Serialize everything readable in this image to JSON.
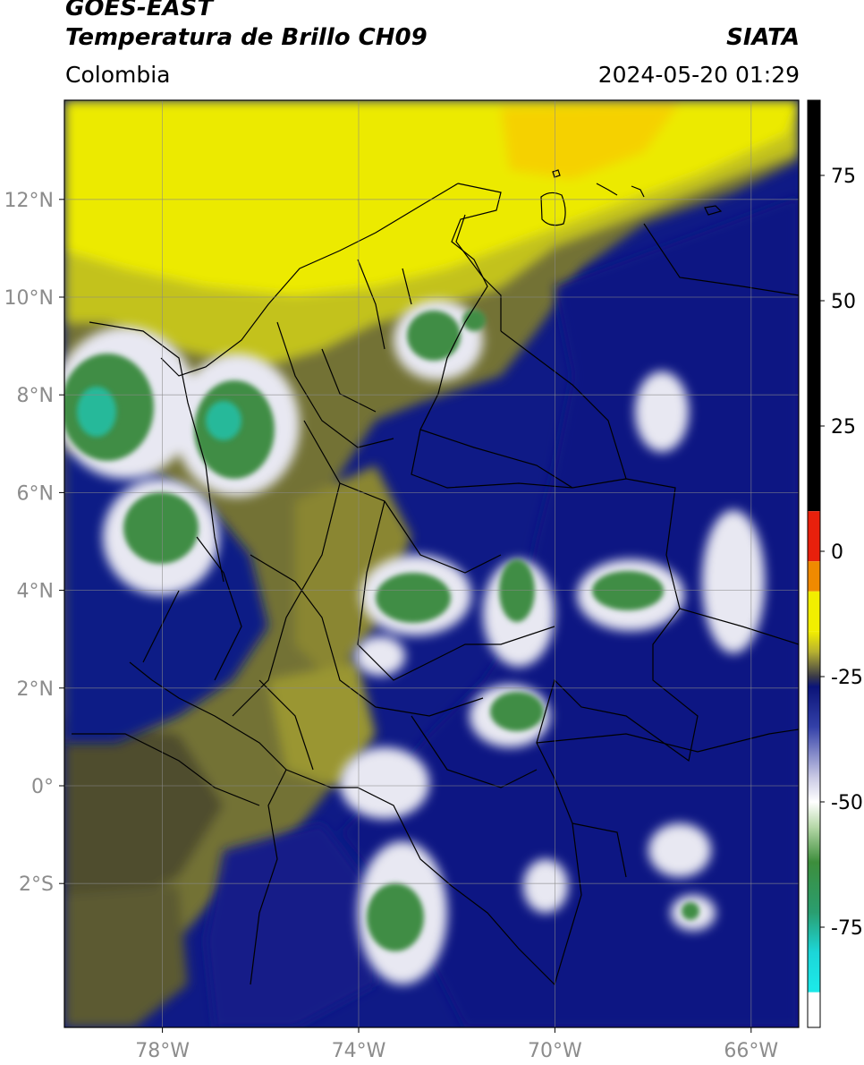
{
  "header": {
    "satellite": "GOES-EAST",
    "product": "Temperatura de Brillo CH09",
    "region": "Colombia",
    "organization": "SIATA",
    "datetime": "2024-05-20 01:29"
  },
  "map": {
    "lat_ticks": [
      {
        "lat": 12,
        "label": "12°N"
      },
      {
        "lat": 10,
        "label": "10°N"
      },
      {
        "lat": 8,
        "label": "8°N"
      },
      {
        "lat": 6,
        "label": "6°N"
      },
      {
        "lat": 4,
        "label": "4°N"
      },
      {
        "lat": 2,
        "label": "2°N"
      },
      {
        "lat": 0,
        "label": "0°"
      },
      {
        "lat": -2,
        "label": "2°S"
      }
    ],
    "lon_ticks": [
      {
        "lon": -78,
        "label": "78°W"
      },
      {
        "lon": -74,
        "label": "74°W"
      },
      {
        "lon": -70,
        "label": "70°W"
      },
      {
        "lon": -66,
        "label": "66°W"
      }
    ],
    "lon_range": [
      -80,
      -65
    ],
    "lat_range": [
      -5,
      14
    ]
  },
  "colorbar": {
    "ticks": [
      {
        "value": 75,
        "label": "75"
      },
      {
        "value": 50,
        "label": "50"
      },
      {
        "value": 25,
        "label": "25"
      },
      {
        "value": 0,
        "label": "0"
      },
      {
        "value": -25,
        "label": "-25"
      },
      {
        "value": -50,
        "label": "-50"
      },
      {
        "value": -75,
        "label": "-75"
      }
    ],
    "range": [
      -95,
      90
    ],
    "colors": {
      "warm": "#000000",
      "red": "#e8200c",
      "orange": "#f08a00",
      "yellow": "#f2ee00",
      "olive": "#7d7a2e",
      "navy": "#0b1478",
      "white": "#ffffff",
      "green": "#3d8e3c",
      "cyan": "#1cd6d8"
    }
  }
}
